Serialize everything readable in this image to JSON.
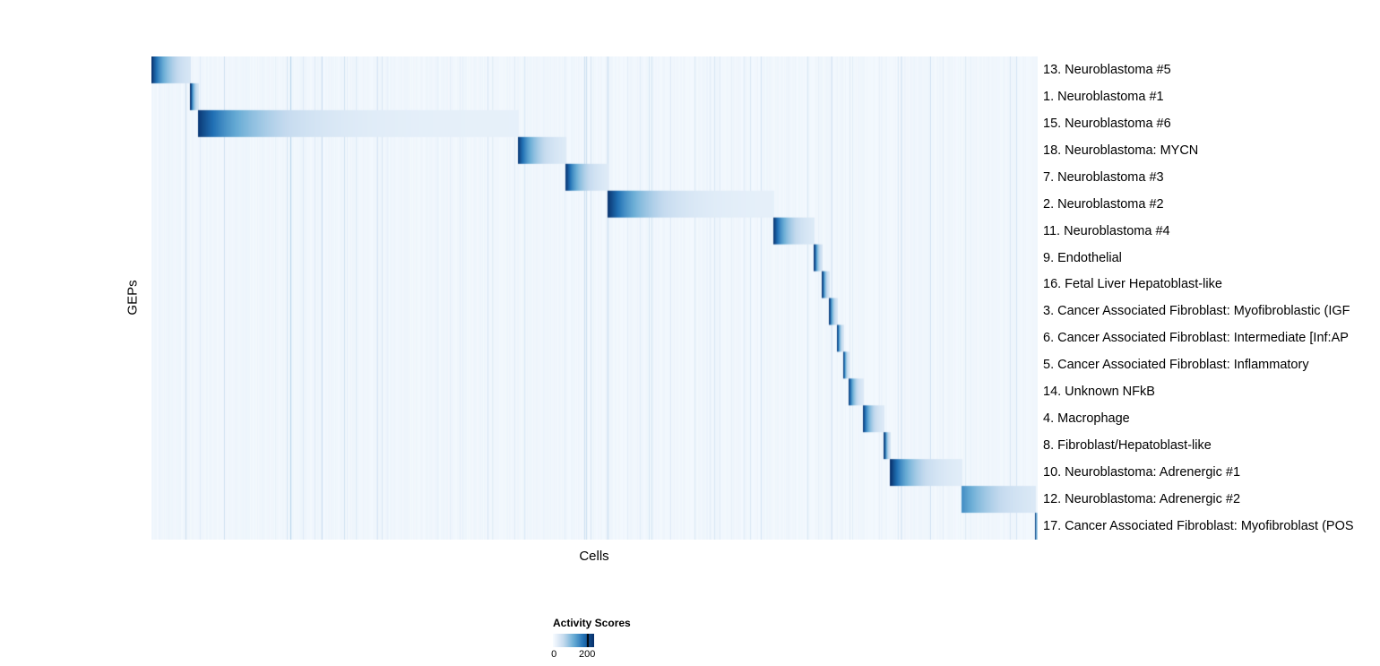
{
  "chart_data": {
    "type": "heatmap",
    "title": "",
    "xlabel": "Cells",
    "ylabel": "GEPs",
    "grid": false,
    "description": "Activity scores of 18 gene expression programs (GEPs, rows) across cells (columns), cells ordered by assigned GEP so high scores form a diagonal block structure",
    "colorbar": {
      "title": "Activity Scores",
      "min": 0,
      "scale_max": 240,
      "tick_min_label": "0",
      "tick_max_label": "200",
      "tick_max_value": 200,
      "tick_max_fraction": 0.833,
      "min_color": "#f7fbff",
      "max_color": "#08306b"
    },
    "rows": [
      {
        "label": "13. Neuroblastoma #5",
        "block_start": 0.0,
        "block_end": 0.044,
        "peak_score": 235,
        "decay": 2.5
      },
      {
        "label": "1. Neuroblastoma #1",
        "block_start": 0.044,
        "block_end": 0.053,
        "peak_score": 235,
        "decay": 2.5
      },
      {
        "label": "15. Neuroblastoma #6",
        "block_start": 0.053,
        "block_end": 0.414,
        "peak_score": 230,
        "decay": 6.0
      },
      {
        "label": "18. Neuroblastoma: MYCN",
        "block_start": 0.414,
        "block_end": 0.468,
        "peak_score": 225,
        "decay": 3.0
      },
      {
        "label": "7. Neuroblastoma #3",
        "block_start": 0.468,
        "block_end": 0.515,
        "peak_score": 225,
        "decay": 3.0
      },
      {
        "label": "2. Neuroblastoma #2",
        "block_start": 0.515,
        "block_end": 0.702,
        "peak_score": 235,
        "decay": 5.0
      },
      {
        "label": "11. Neuroblastoma #4",
        "block_start": 0.702,
        "block_end": 0.748,
        "peak_score": 230,
        "decay": 3.0
      },
      {
        "label": "9. Endothelial",
        "block_start": 0.748,
        "block_end": 0.757,
        "peak_score": 225,
        "decay": 2.5
      },
      {
        "label": "16. Fetal Liver Hepatoblast-like",
        "block_start": 0.757,
        "block_end": 0.765,
        "peak_score": 225,
        "decay": 2.5
      },
      {
        "label": "3. Cancer Associated Fibroblast: Myofibroblastic (IGF",
        "block_start": 0.765,
        "block_end": 0.774,
        "peak_score": 225,
        "decay": 2.5
      },
      {
        "label": "6. Cancer Associated Fibroblast: Intermediate [Inf:AP",
        "block_start": 0.774,
        "block_end": 0.781,
        "peak_score": 220,
        "decay": 2.5
      },
      {
        "label": "5. Cancer Associated Fibroblast: Inflammatory",
        "block_start": 0.781,
        "block_end": 0.787,
        "peak_score": 220,
        "decay": 2.5
      },
      {
        "label": "14. Unknown NFkB",
        "block_start": 0.787,
        "block_end": 0.803,
        "peak_score": 220,
        "decay": 2.8
      },
      {
        "label": "4. Macrophage",
        "block_start": 0.803,
        "block_end": 0.827,
        "peak_score": 225,
        "decay": 3.0
      },
      {
        "label": "8. Fibroblast/Hepatoblast-like",
        "block_start": 0.827,
        "block_end": 0.834,
        "peak_score": 220,
        "decay": 2.5
      },
      {
        "label": "10. Neuroblastoma: Adrenergic #1",
        "block_start": 0.834,
        "block_end": 0.915,
        "peak_score": 235,
        "decay": 3.5
      },
      {
        "label": "12. Neuroblastoma: Adrenergic #2",
        "block_start": 0.915,
        "block_end": 0.997,
        "peak_score": 150,
        "decay": 2.2
      },
      {
        "label": "17. Cancer Associated Fibroblast: Myofibroblast (POS",
        "block_start": 0.997,
        "block_end": 1.0,
        "peak_score": 215,
        "decay": 2.0
      }
    ],
    "background": {
      "base_score_min": 4,
      "base_score_max": 12,
      "stripe_chance": 0.08,
      "stripe_extra_max": 35,
      "tail_score": 20
    }
  }
}
